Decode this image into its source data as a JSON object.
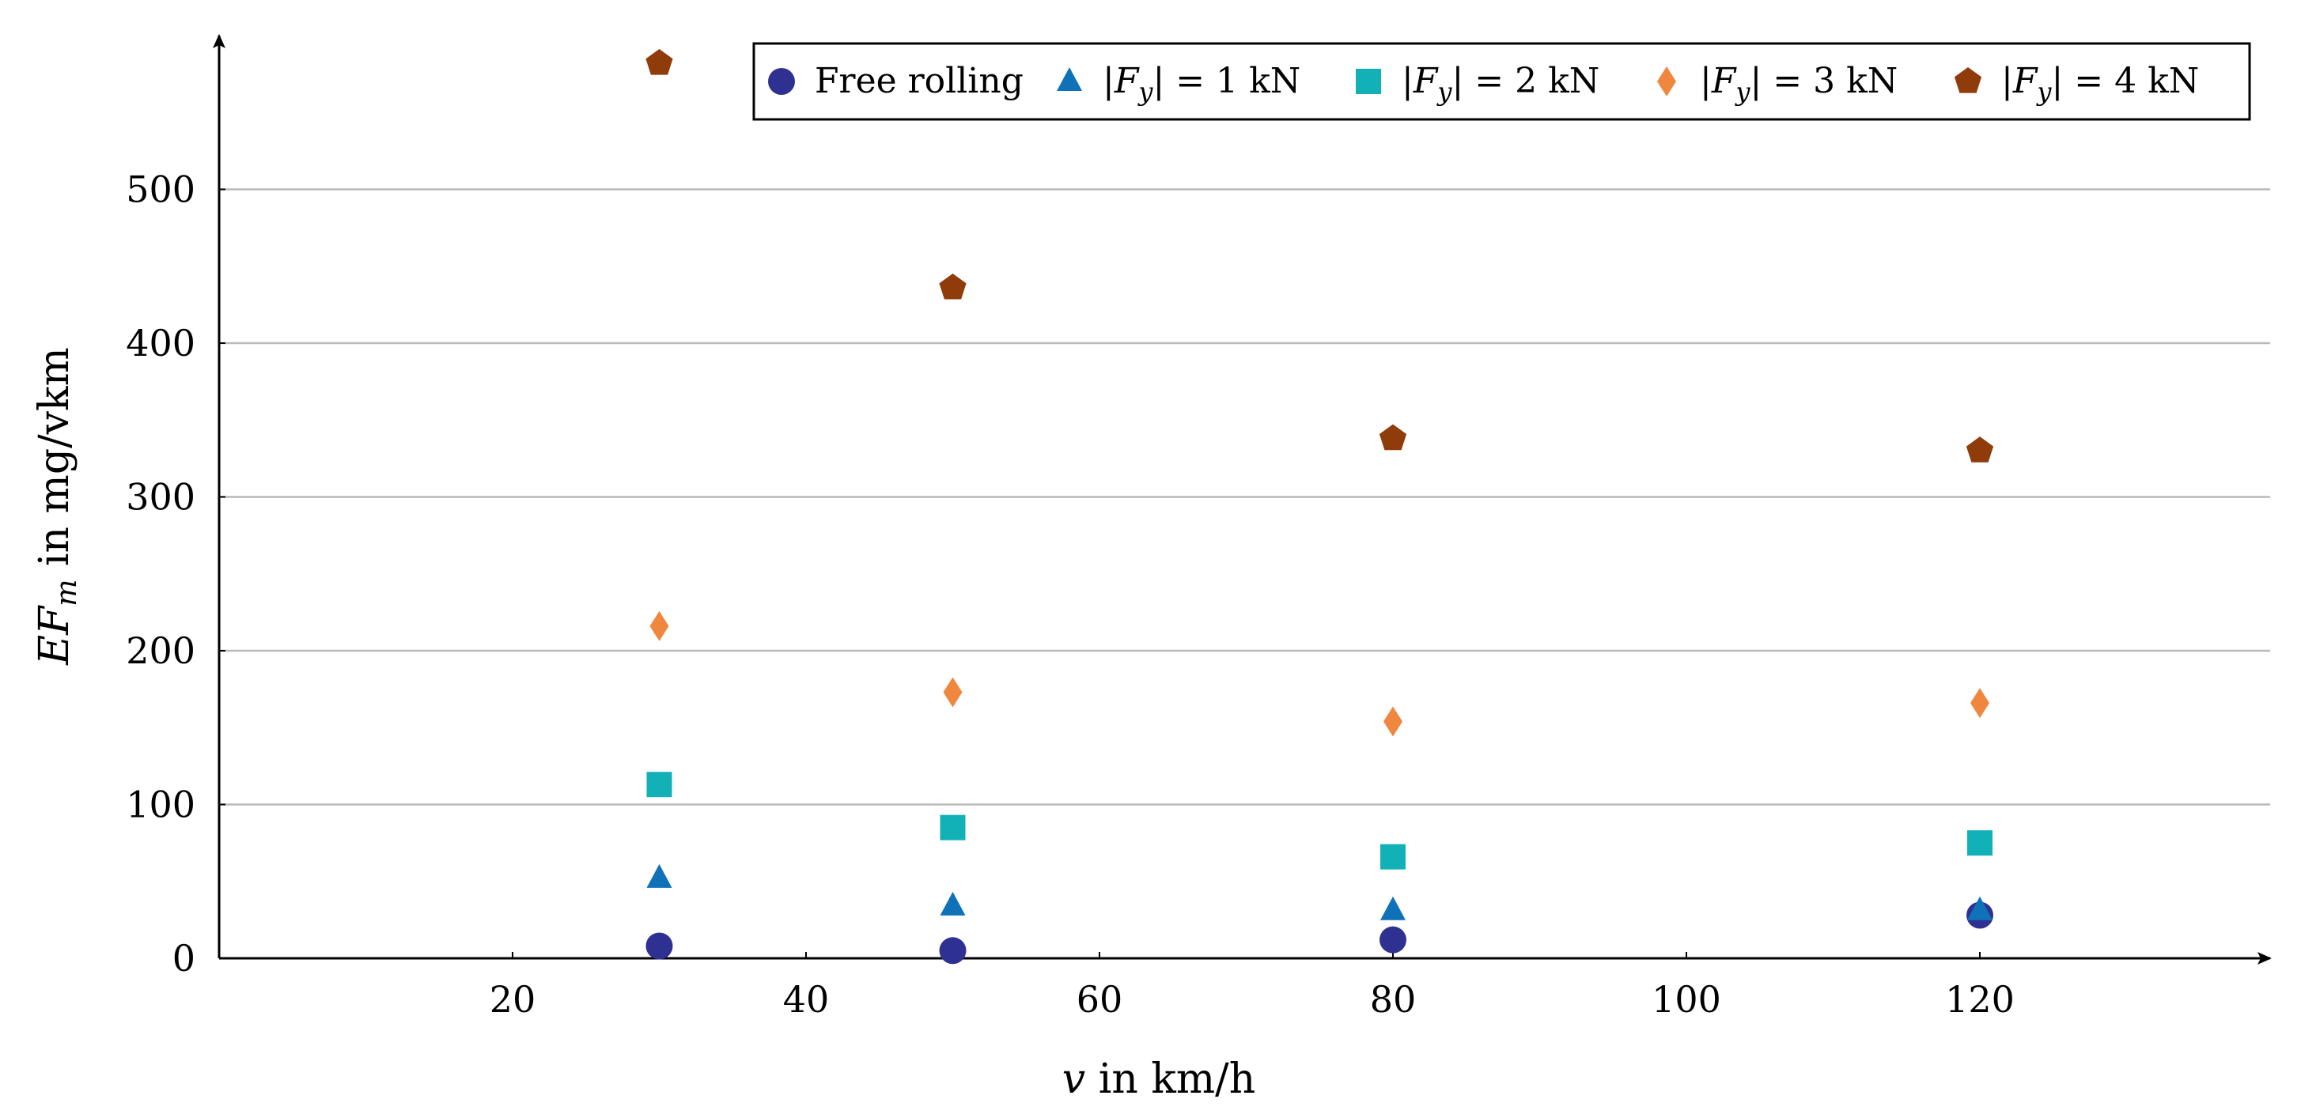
{
  "chart_data": {
    "type": "scatter",
    "title": "",
    "xlabel": {
      "var": "v",
      "rest": " in km/h"
    },
    "ylabel": {
      "var": "EF",
      "sub": "m",
      "rest": " in mg/vkm"
    },
    "xlim": [
      0,
      140
    ],
    "ylim": [
      0,
      600
    ],
    "xticks": [
      20,
      40,
      60,
      80,
      100,
      120
    ],
    "yticks": [
      0,
      100,
      200,
      300,
      400,
      500
    ],
    "grid": "horizontal",
    "legend_position": "top-right",
    "x": [
      30,
      50,
      80,
      120
    ],
    "series": [
      {
        "key": "free",
        "marker": "circle",
        "color": "#2e3192",
        "legend": {
          "text": "Free rolling"
        },
        "values": [
          8,
          5,
          12,
          28
        ]
      },
      {
        "key": "fy1",
        "marker": "triangle",
        "color": "#0f72b8",
        "legend": {
          "math": "|F",
          "sub": "y",
          "eq": "| = 1 kN"
        },
        "values": [
          52,
          34,
          31,
          31
        ]
      },
      {
        "key": "fy2",
        "marker": "square",
        "color": "#12b1b7",
        "legend": {
          "math": "|F",
          "sub": "y",
          "eq": "| = 2 kN"
        },
        "values": [
          113,
          85,
          66,
          75
        ]
      },
      {
        "key": "fy3",
        "marker": "diamond",
        "color": "#f0873f",
        "legend": {
          "math": "|F",
          "sub": "y",
          "eq": "| = 3 kN"
        },
        "values": [
          216,
          173,
          154,
          166
        ]
      },
      {
        "key": "fy4",
        "marker": "pentagon",
        "color": "#8f3b0a",
        "legend": {
          "math": "|F",
          "sub": "y",
          "eq": "| = 4 kN"
        },
        "values": [
          582,
          436,
          338,
          330
        ]
      }
    ]
  }
}
